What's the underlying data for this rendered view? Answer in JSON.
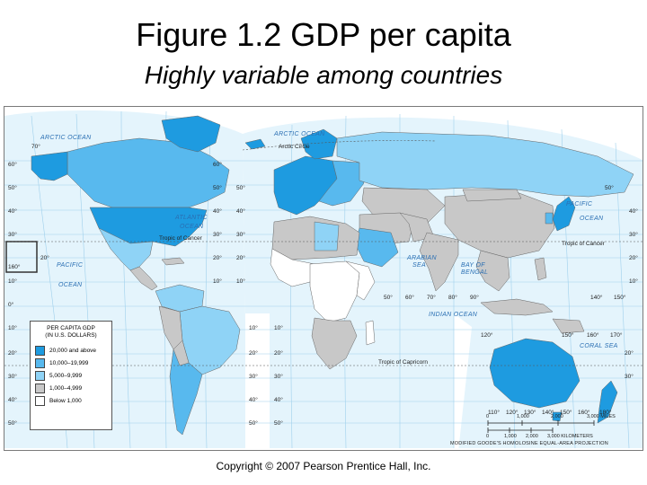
{
  "title": "Figure 1.2 GDP per capita",
  "subtitle": "Highly variable among countries",
  "colors": {
    "tier_20000_plus": "#1e9be0",
    "tier_10000_19999": "#58b9ee",
    "tier_5000_9999": "#8fd3f6",
    "tier_1000_4999": "#c8c8c8",
    "tier_below_1000": "#ffffff",
    "ocean": "#e4f4fc",
    "grid": "#9fd0ec"
  },
  "legend": {
    "title_line1": "PER CAPITA GDP",
    "title_line2": "(IN U.S. DOLLARS)",
    "items": [
      {
        "label": "20,000 and above",
        "color": "#1e9be0"
      },
      {
        "label": "10,000–19,999",
        "color": "#58b9ee"
      },
      {
        "label": "5,000–9,999",
        "color": "#8fd3f6"
      },
      {
        "label": "1,000–4,999",
        "color": "#c8c8c8"
      },
      {
        "label": "Below 1,000",
        "color": "#ffffff"
      }
    ]
  },
  "map_labels": {
    "oceans": {
      "arctic_left": "ARCTIC OCEAN",
      "arctic_right": "ARCTIC OCEAN",
      "atlantic_1": "ATLANTIC",
      "atlantic_2": "OCEAN",
      "pacific_left_1": "PACIFIC",
      "pacific_left_2": "OCEAN",
      "pacific_right_1": "PACIFIC",
      "pacific_right_2": "OCEAN",
      "indian": "INDIAN OCEAN",
      "arabian_1": "ARABIAN",
      "arabian_2": "SEA",
      "bengal_1": "BAY OF",
      "bengal_2": "BENGAL",
      "coral": "CORAL SEA"
    },
    "lines": {
      "arctic_circle": "Arctic Circle",
      "cancer_left": "Tropic of Cancer",
      "cancer_right": "Tropic of Cancer",
      "capricorn": "Tropic of Capricorn"
    },
    "degrees": {
      "l_70": "70°",
      "l_60": "60°",
      "l_50": "50°",
      "l_40": "40°",
      "l_30": "30°",
      "l_20": "20°",
      "l_160": "160°",
      "l_10": "10°",
      "l_0": "0°",
      "l_s10": "10°",
      "l_s20": "20°",
      "l_s30": "30°",
      "l_s40": "40°",
      "l_s50": "50°",
      "m_60": "60°",
      "m_50": "50°",
      "m_40": "40°",
      "m_30": "30°",
      "m_20": "20°",
      "m_10": "10°",
      "c_50": "50°",
      "c_40": "40°",
      "c_30": "30°",
      "c_20": "20°",
      "c_10": "10°",
      "c_s10": "10°",
      "c_s20": "20°",
      "c_s30": "30°",
      "c_s40": "40°",
      "c_s50": "50°",
      "a_s10": "10°",
      "a_s20": "20°",
      "a_s30": "30°",
      "a_s40": "40°",
      "a_s50": "50°",
      "r_50": "50°",
      "r_40": "40°",
      "r_30": "30°",
      "r_20": "20°",
      "r_10": "10°",
      "b_50": "50°",
      "b_60": "60°",
      "b_70": "70°",
      "b_80": "80°",
      "b_90": "90°",
      "e_140": "140°",
      "e_150": "150°",
      "au_120": "120°",
      "au_150": "150°",
      "au_160": "160°",
      "au_170": "170°",
      "au_s20": "20°",
      "au_s30": "30°",
      "au_110": "110°",
      "au_120b": "120°",
      "au_130": "130°",
      "au_140": "140°",
      "au_150b": "150°",
      "au_160b": "160°",
      "au_180": "180°"
    }
  },
  "scale": {
    "miles_0": "0",
    "miles_1000": "1,000",
    "miles_2000": "2,000",
    "miles_3000": "3,000 MILES",
    "km_0": "0",
    "km_1000": "1,000",
    "km_2000": "2,000",
    "km_3000": "3,000 KILOMETERS"
  },
  "projection": "MODIFIED GOODE'S HOMOLOSINE EQUAL-AREA PROJECTION",
  "copyright": "Copyright © 2007 Pearson Prentice Hall, Inc."
}
